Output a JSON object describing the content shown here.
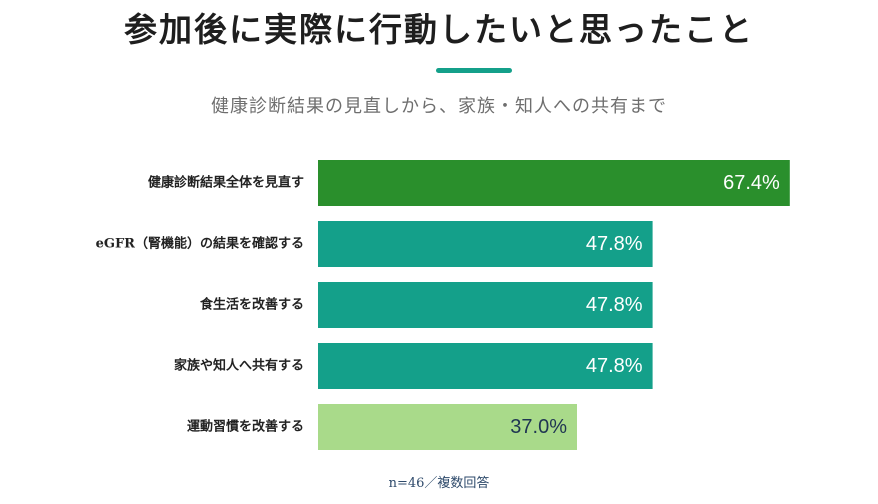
{
  "title": "参加後に実際に行動したいと思ったこと",
  "subtitle": "健康診断結果の見直しから、家族・知人への共有まで",
  "note": "n=46／複数回答",
  "colors": {
    "accent": "#14a08a",
    "dark_green": "#2a8f2c",
    "teal": "#14a08a",
    "light_green": "#a9da8a",
    "value_text_light": "#ffffff",
    "value_text_dark": "#1f3552"
  },
  "chart_data": {
    "type": "bar",
    "orientation": "horizontal",
    "unit": "%",
    "xlim": [
      0,
      70
    ],
    "categories": [
      "健康診断結果全体を見直す",
      "eGFR（腎機能）の結果を確認する",
      "食生活を改善する",
      "家族や知人へ共有する",
      "運動習慣を改善する"
    ],
    "values": [
      67.4,
      47.8,
      47.8,
      47.8,
      37.0
    ],
    "value_labels": [
      "67.4%",
      "47.8%",
      "47.8%",
      "47.8%",
      "37.0%"
    ],
    "bar_colors": [
      "#2a8f2c",
      "#14a08a",
      "#14a08a",
      "#14a08a",
      "#a9da8a"
    ],
    "value_label_colors": [
      "#ffffff",
      "#ffffff",
      "#ffffff",
      "#ffffff",
      "#1f3552"
    ],
    "grid": false,
    "legend": "none"
  }
}
